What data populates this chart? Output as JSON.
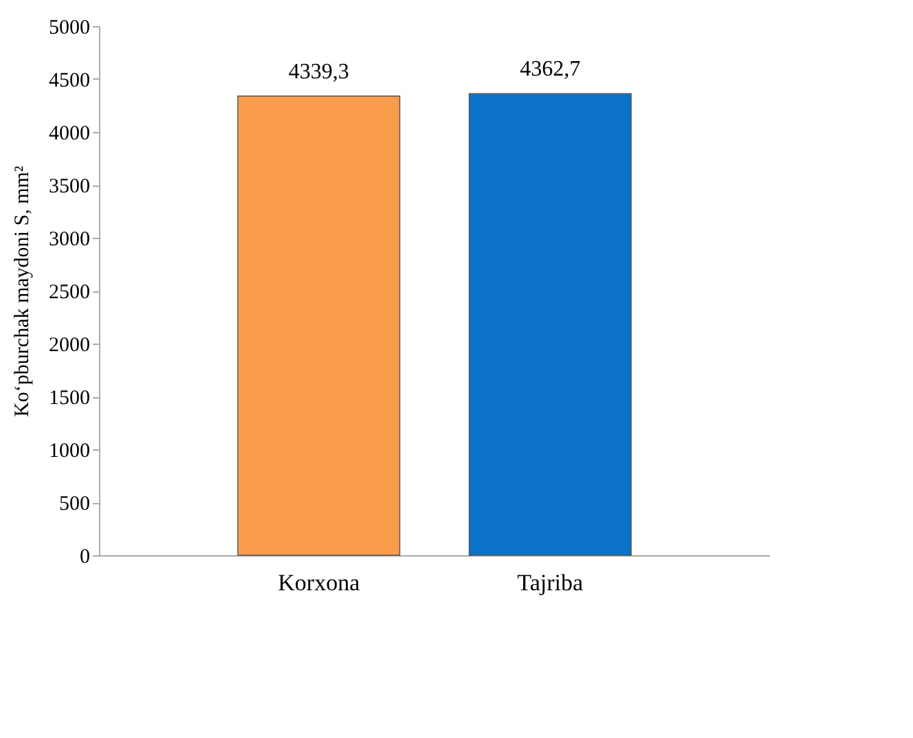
{
  "chart_data": {
    "type": "bar",
    "ylabel": "Ko‘pburchak maydoni  S, mm²",
    "categories": [
      "Korxona",
      "Tajriba"
    ],
    "values": [
      4339.3,
      4362.7
    ],
    "colors": [
      "#f99d4c",
      "#0a72c8"
    ],
    "value_labels": [
      "4339,3",
      "4362,7"
    ],
    "ylim": [
      0,
      5000
    ],
    "yticks": [
      0,
      500,
      1000,
      1500,
      2000,
      2500,
      3000,
      3500,
      4000,
      4500,
      5000
    ],
    "grid": false,
    "legend": false
  }
}
